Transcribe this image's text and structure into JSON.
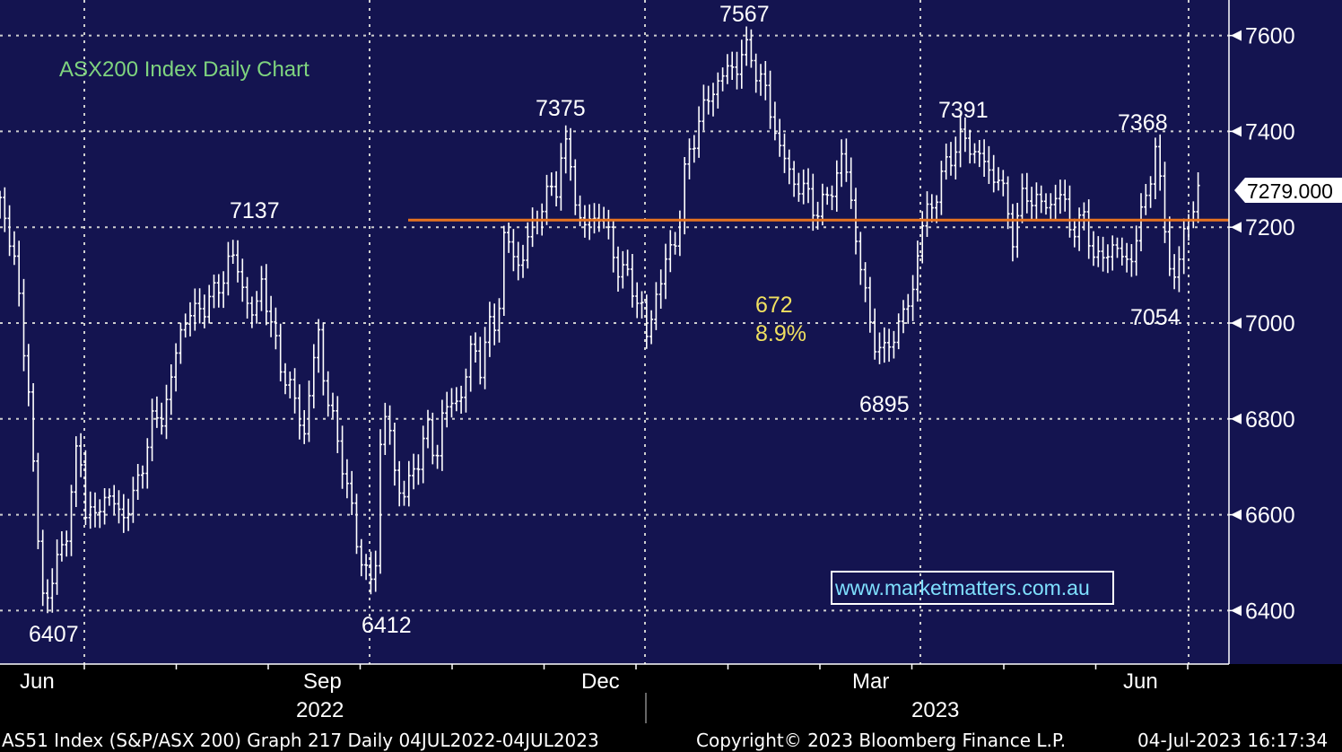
{
  "chart_data": {
    "type": "ohlc",
    "title": "ASX200 Index Daily Chart",
    "ylim": [
      6300,
      7640
    ],
    "y_ticks": [
      6400,
      6600,
      6800,
      7000,
      7200,
      7400,
      7600
    ],
    "grid": true,
    "last_price": "7279.000",
    "support_level": 7215,
    "x_ticks": [
      "Jun",
      "Sep",
      "Dec",
      "Mar",
      "Jun"
    ],
    "year_labels": [
      "2022",
      "2023"
    ],
    "watermark": "www.marketmatters.com.au",
    "annotations": [
      {
        "text": "6407",
        "value": 6407
      },
      {
        "text": "6412",
        "value": 6412
      },
      {
        "text": "7137",
        "value": 7137
      },
      {
        "text": "7375",
        "value": 7375
      },
      {
        "text": "7567",
        "value": 7567
      },
      {
        "text": "672",
        "value": 672
      },
      {
        "text": "8.9%",
        "value": 8.9
      },
      {
        "text": "6895",
        "value": 6895
      },
      {
        "text": "7391",
        "value": 7391
      },
      {
        "text": "7368",
        "value": 7368
      },
      {
        "text": "7054",
        "value": 7054
      }
    ],
    "price_path": [
      [
        0,
        7250
      ],
      [
        6,
        7240
      ],
      [
        12,
        7150
      ],
      [
        22,
        7050
      ],
      [
        32,
        6850
      ],
      [
        40,
        6600
      ],
      [
        47,
        6450
      ],
      [
        55,
        6420
      ],
      [
        65,
        6520
      ],
      [
        75,
        6570
      ],
      [
        82,
        6680
      ],
      [
        88,
        6760
      ],
      [
        95,
        6620
      ],
      [
        105,
        6580
      ],
      [
        115,
        6650
      ],
      [
        125,
        6620
      ],
      [
        140,
        6600
      ],
      [
        150,
        6640
      ],
      [
        160,
        6720
      ],
      [
        170,
        6790
      ],
      [
        180,
        6810
      ],
      [
        190,
        6860
      ],
      [
        200,
        6990
      ],
      [
        210,
        7010
      ],
      [
        220,
        7030
      ],
      [
        230,
        7040
      ],
      [
        240,
        7060
      ],
      [
        250,
        7110
      ],
      [
        258,
        7130
      ],
      [
        266,
        7120
      ],
      [
        275,
        7040
      ],
      [
        283,
        7000
      ],
      [
        292,
        7110
      ],
      [
        300,
        6990
      ],
      [
        310,
        6950
      ],
      [
        320,
        6860
      ],
      [
        330,
        6840
      ],
      [
        340,
        6760
      ],
      [
        350,
        6930
      ],
      [
        356,
        7000
      ],
      [
        362,
        6850
      ],
      [
        372,
        6790
      ],
      [
        380,
        6730
      ],
      [
        390,
        6620
      ],
      [
        396,
        6560
      ],
      [
        405,
        6500
      ],
      [
        412,
        6450
      ],
      [
        418,
        6470
      ],
      [
        425,
        6800
      ],
      [
        432,
        6810
      ],
      [
        440,
        6680
      ],
      [
        448,
        6650
      ],
      [
        458,
        6660
      ],
      [
        466,
        6720
      ],
      [
        475,
        6790
      ],
      [
        485,
        6700
      ],
      [
        492,
        6810
      ],
      [
        500,
        6820
      ],
      [
        510,
        6840
      ],
      [
        520,
        6890
      ],
      [
        528,
        6960
      ],
      [
        536,
        6910
      ],
      [
        546,
        6990
      ],
      [
        555,
        7010
      ],
      [
        562,
        7180
      ],
      [
        570,
        7150
      ],
      [
        580,
        7120
      ],
      [
        590,
        7180
      ],
      [
        600,
        7240
      ],
      [
        610,
        7260
      ],
      [
        620,
        7290
      ],
      [
        628,
        7375
      ],
      [
        635,
        7340
      ],
      [
        642,
        7250
      ],
      [
        650,
        7200
      ],
      [
        660,
        7210
      ],
      [
        670,
        7240
      ],
      [
        680,
        7160
      ],
      [
        690,
        7120
      ],
      [
        700,
        7090
      ],
      [
        708,
        7060
      ],
      [
        715,
        7040
      ],
      [
        722,
        6950
      ],
      [
        730,
        7060
      ],
      [
        740,
        7110
      ],
      [
        750,
        7160
      ],
      [
        758,
        7230
      ],
      [
        765,
        7330
      ],
      [
        772,
        7380
      ],
      [
        782,
        7440
      ],
      [
        792,
        7470
      ],
      [
        800,
        7510
      ],
      [
        810,
        7520
      ],
      [
        820,
        7540
      ],
      [
        828,
        7560
      ],
      [
        836,
        7565
      ],
      [
        845,
        7520
      ],
      [
        853,
        7480
      ],
      [
        862,
        7420
      ],
      [
        870,
        7360
      ],
      [
        878,
        7320
      ],
      [
        888,
        7290
      ],
      [
        898,
        7270
      ],
      [
        906,
        7250
      ],
      [
        914,
        7230
      ],
      [
        922,
        7260
      ],
      [
        930,
        7300
      ],
      [
        938,
        7340
      ],
      [
        946,
        7300
      ],
      [
        954,
        7180
      ],
      [
        962,
        7080
      ],
      [
        970,
        7000
      ],
      [
        978,
        6950
      ],
      [
        986,
        6930
      ],
      [
        994,
        6980
      ],
      [
        1002,
        6990
      ],
      [
        1010,
        7030
      ],
      [
        1018,
        7080
      ],
      [
        1026,
        7180
      ],
      [
        1034,
        7240
      ],
      [
        1042,
        7260
      ],
      [
        1050,
        7300
      ],
      [
        1058,
        7350
      ],
      [
        1066,
        7370
      ],
      [
        1074,
        7385
      ],
      [
        1082,
        7370
      ],
      [
        1090,
        7350
      ],
      [
        1098,
        7330
      ],
      [
        1106,
        7310
      ],
      [
        1114,
        7300
      ],
      [
        1122,
        7240
      ],
      [
        1130,
        7180
      ],
      [
        1138,
        7250
      ],
      [
        1146,
        7270
      ],
      [
        1154,
        7260
      ],
      [
        1162,
        7240
      ],
      [
        1170,
        7250
      ],
      [
        1178,
        7270
      ],
      [
        1186,
        7250
      ],
      [
        1194,
        7200
      ],
      [
        1202,
        7200
      ],
      [
        1210,
        7220
      ],
      [
        1218,
        7150
      ],
      [
        1226,
        7120
      ],
      [
        1234,
        7150
      ],
      [
        1242,
        7170
      ],
      [
        1250,
        7130
      ],
      [
        1258,
        7130
      ],
      [
        1266,
        7170
      ],
      [
        1274,
        7230
      ],
      [
        1280,
        7300
      ],
      [
        1288,
        7360
      ],
      [
        1296,
        7240
      ],
      [
        1302,
        7150
      ],
      [
        1308,
        7080
      ],
      [
        1314,
        7120
      ],
      [
        1320,
        7200
      ],
      [
        1328,
        7230
      ],
      [
        1336,
        7280
      ]
    ]
  },
  "footer": {
    "left": "AS51 Index (S&P/ASX 200) Graph 217  Daily 04JUL2022-04JUL2023",
    "center": "Copyright© 2023 Bloomberg Finance L.P.",
    "right": "04-Jul-2023 16:17:34"
  },
  "colors": {
    "plot_bg": "#141450",
    "page_bg": "#000000",
    "price": "#ffffff",
    "support_line": "#e8731f",
    "title": "#7fd47f",
    "pct_label": "#f0e060",
    "watermark": "#7fe0ff"
  }
}
